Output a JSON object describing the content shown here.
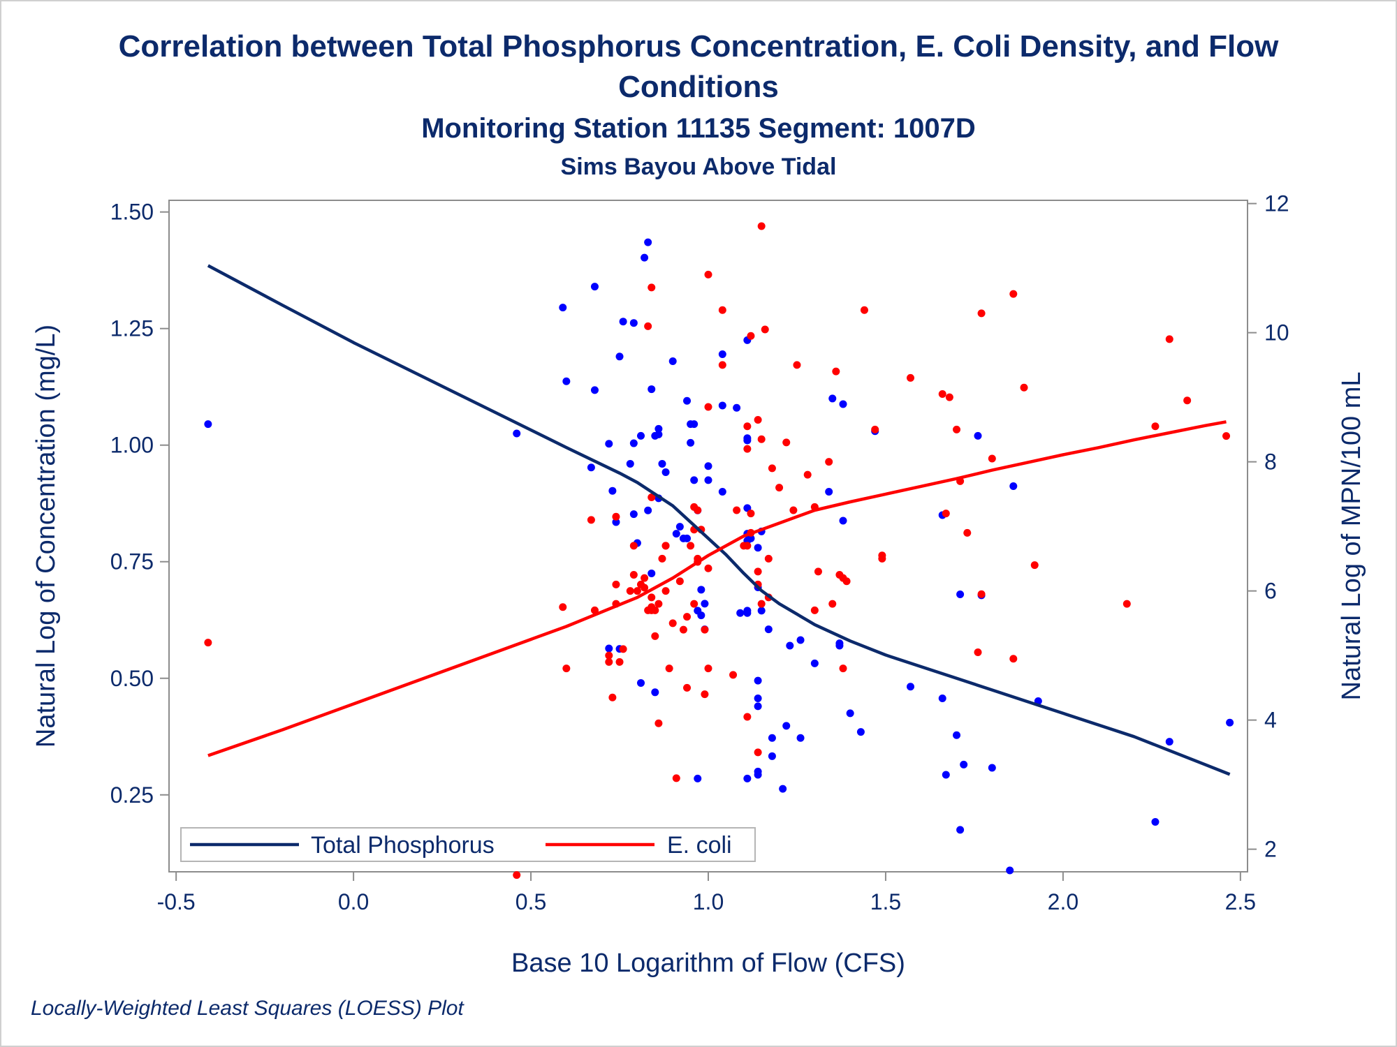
{
  "title": "Correlation between Total Phosphorus Concentration, E. Coli Density, and Flow Conditions",
  "subtitle1": "Monitoring Station 11135 Segment: 1007D",
  "subtitle2": "Sims Bayou Above Tidal",
  "footnote": "Locally-Weighted Least Squares (LOESS) Plot",
  "colors": {
    "text": "#0c2a6b",
    "phosphorus": "#0c2a6b",
    "phosphorus_points": "#0000ff",
    "ecoli": "#ff0000"
  },
  "chart_data": {
    "type": "scatter",
    "xlabel": "Base 10 Logarithm of Flow (CFS)",
    "ylabel_left": "Natural Log of Concentration (mg/L)",
    "ylabel_right": "Natural Log of MPN/100 mL",
    "xlim": [
      -0.52,
      2.52
    ],
    "ylim_left": [
      0.085,
      1.525
    ],
    "ylim_right": [
      1.65,
      12.05
    ],
    "x_ticks": [
      "-0.5",
      "0.0",
      "0.5",
      "1.0",
      "1.5",
      "2.0",
      "2.5"
    ],
    "y_left_ticks": [
      "0.25",
      "0.50",
      "0.75",
      "1.00",
      "1.25",
      "1.50"
    ],
    "y_right_ticks": [
      "2",
      "4",
      "6",
      "8",
      "10",
      "12"
    ],
    "legend": {
      "placement": "bottom-left",
      "items": [
        "Total Phosphorus",
        "E. coli"
      ]
    },
    "series": [
      {
        "name": "Total Phosphorus",
        "axis": "left",
        "points": [
          [
            -0.41,
            1.045
          ],
          [
            0.46,
            1.025
          ],
          [
            0.59,
            1.295
          ],
          [
            0.6,
            1.137
          ],
          [
            0.67,
            0.952
          ],
          [
            0.68,
            1.34
          ],
          [
            0.68,
            1.118
          ],
          [
            0.72,
            1.003
          ],
          [
            0.72,
            0.564
          ],
          [
            0.73,
            0.902
          ],
          [
            0.74,
            0.835
          ],
          [
            0.75,
            0.563
          ],
          [
            0.75,
            1.19
          ],
          [
            0.76,
            1.265
          ],
          [
            0.78,
            0.96
          ],
          [
            0.79,
            1.004
          ],
          [
            0.79,
            1.262
          ],
          [
            0.79,
            0.852
          ],
          [
            0.8,
            0.79
          ],
          [
            0.81,
            1.02
          ],
          [
            0.81,
            0.49
          ],
          [
            0.82,
            1.402
          ],
          [
            0.83,
            1.435
          ],
          [
            0.83,
            0.86
          ],
          [
            0.84,
            0.725
          ],
          [
            0.84,
            1.12
          ],
          [
            0.85,
            1.02
          ],
          [
            0.85,
            0.47
          ],
          [
            0.86,
            0.886
          ],
          [
            0.86,
            1.035
          ],
          [
            0.86,
            1.023
          ],
          [
            0.87,
            0.96
          ],
          [
            0.88,
            0.942
          ],
          [
            0.9,
            1.18
          ],
          [
            0.91,
            0.81
          ],
          [
            0.92,
            0.825
          ],
          [
            0.93,
            0.8
          ],
          [
            0.94,
            0.8
          ],
          [
            0.94,
            1.095
          ],
          [
            0.95,
            1.005
          ],
          [
            0.95,
            1.045
          ],
          [
            0.96,
            1.045
          ],
          [
            0.96,
            0.925
          ],
          [
            0.97,
            0.86
          ],
          [
            0.97,
            0.645
          ],
          [
            0.97,
            0.285
          ],
          [
            0.98,
            0.69
          ],
          [
            0.98,
            0.635
          ],
          [
            0.99,
            0.66
          ],
          [
            0.99,
            0.605
          ],
          [
            1.0,
            0.925
          ],
          [
            1.0,
            0.955
          ],
          [
            1.04,
            1.195
          ],
          [
            1.04,
            1.085
          ],
          [
            1.04,
            0.9
          ],
          [
            1.08,
            1.08
          ],
          [
            1.09,
            0.64
          ],
          [
            1.11,
            1.225
          ],
          [
            1.11,
            0.865
          ],
          [
            1.11,
            1.015
          ],
          [
            1.11,
            1.01
          ],
          [
            1.11,
            0.81
          ],
          [
            1.11,
            0.795
          ],
          [
            1.11,
            0.645
          ],
          [
            1.11,
            0.64
          ],
          [
            1.11,
            0.285
          ],
          [
            1.12,
            0.8
          ],
          [
            1.14,
            0.3
          ],
          [
            1.14,
            0.293
          ],
          [
            1.14,
            0.44
          ],
          [
            1.14,
            0.495
          ],
          [
            1.14,
            0.695
          ],
          [
            1.14,
            0.457
          ],
          [
            1.14,
            0.78
          ],
          [
            1.15,
            0.815
          ],
          [
            1.15,
            0.645
          ],
          [
            1.17,
            0.605
          ],
          [
            1.18,
            0.372
          ],
          [
            1.18,
            0.333
          ],
          [
            1.21,
            0.263
          ],
          [
            1.22,
            0.398
          ],
          [
            1.23,
            0.57
          ],
          [
            1.26,
            0.372
          ],
          [
            1.26,
            0.582
          ],
          [
            1.3,
            0.532
          ],
          [
            1.34,
            0.9
          ],
          [
            1.35,
            1.1
          ],
          [
            1.37,
            0.57
          ],
          [
            1.37,
            0.575
          ],
          [
            1.38,
            1.088
          ],
          [
            1.38,
            0.838
          ],
          [
            1.4,
            0.425
          ],
          [
            1.43,
            0.385
          ],
          [
            1.47,
            1.03
          ],
          [
            1.57,
            0.482
          ],
          [
            1.66,
            0.457
          ],
          [
            1.66,
            0.85
          ],
          [
            1.67,
            0.293
          ],
          [
            1.7,
            0.378
          ],
          [
            1.71,
            0.68
          ],
          [
            1.71,
            0.175
          ],
          [
            1.72,
            0.315
          ],
          [
            1.76,
            1.02
          ],
          [
            1.77,
            0.678
          ],
          [
            1.8,
            0.308
          ],
          [
            1.85,
            0.088
          ],
          [
            1.86,
            0.912
          ],
          [
            1.93,
            0.451
          ],
          [
            2.26,
            0.192
          ],
          [
            2.3,
            0.364
          ],
          [
            2.47,
            0.405
          ]
        ],
        "loess": [
          [
            -0.41,
            1.385
          ],
          [
            -0.2,
            1.3
          ],
          [
            0.0,
            1.22
          ],
          [
            0.2,
            1.145
          ],
          [
            0.4,
            1.07
          ],
          [
            0.6,
            0.995
          ],
          [
            0.75,
            0.94
          ],
          [
            0.8,
            0.92
          ],
          [
            0.9,
            0.87
          ],
          [
            1.0,
            0.8
          ],
          [
            1.05,
            0.765
          ],
          [
            1.1,
            0.725
          ],
          [
            1.15,
            0.688
          ],
          [
            1.2,
            0.66
          ],
          [
            1.3,
            0.615
          ],
          [
            1.4,
            0.58
          ],
          [
            1.5,
            0.55
          ],
          [
            1.6,
            0.525
          ],
          [
            1.7,
            0.5
          ],
          [
            1.8,
            0.475
          ],
          [
            1.9,
            0.45
          ],
          [
            2.0,
            0.425
          ],
          [
            2.1,
            0.4
          ],
          [
            2.2,
            0.375
          ],
          [
            2.3,
            0.345
          ],
          [
            2.4,
            0.315
          ],
          [
            2.47,
            0.294
          ]
        ]
      },
      {
        "name": "E. coli",
        "axis": "right",
        "points": [
          [
            -0.41,
            5.2
          ],
          [
            0.46,
            1.6
          ],
          [
            0.59,
            5.75
          ],
          [
            0.6,
            4.8
          ],
          [
            0.67,
            7.1
          ],
          [
            0.68,
            5.7
          ],
          [
            0.72,
            4.9
          ],
          [
            0.72,
            5.0
          ],
          [
            0.73,
            4.35
          ],
          [
            0.74,
            5.8
          ],
          [
            0.74,
            6.1
          ],
          [
            0.74,
            7.15
          ],
          [
            0.75,
            4.9
          ],
          [
            0.76,
            5.1
          ],
          [
            0.78,
            6.0
          ],
          [
            0.79,
            6.7
          ],
          [
            0.79,
            6.25
          ],
          [
            0.8,
            6.0
          ],
          [
            0.81,
            6.1
          ],
          [
            0.82,
            6.05
          ],
          [
            0.82,
            6.2
          ],
          [
            0.83,
            5.7
          ],
          [
            0.83,
            10.1
          ],
          [
            0.84,
            5.7
          ],
          [
            0.84,
            5.9
          ],
          [
            0.84,
            7.45
          ],
          [
            0.84,
            10.7
          ],
          [
            0.84,
            5.75
          ],
          [
            0.85,
            5.7
          ],
          [
            0.85,
            5.3
          ],
          [
            0.86,
            3.95
          ],
          [
            0.86,
            5.8
          ],
          [
            0.87,
            6.5
          ],
          [
            0.88,
            6.7
          ],
          [
            0.88,
            6.7
          ],
          [
            0.88,
            6.0
          ],
          [
            0.89,
            4.8
          ],
          [
            0.9,
            5.5
          ],
          [
            0.91,
            3.1
          ],
          [
            0.92,
            6.15
          ],
          [
            0.93,
            5.4
          ],
          [
            0.94,
            5.6
          ],
          [
            0.94,
            4.5
          ],
          [
            0.95,
            6.7
          ],
          [
            0.96,
            5.8
          ],
          [
            0.96,
            7.3
          ],
          [
            0.96,
            6.95
          ],
          [
            0.97,
            6.45
          ],
          [
            0.97,
            6.5
          ],
          [
            0.97,
            7.25
          ],
          [
            0.98,
            6.95
          ],
          [
            0.99,
            4.4
          ],
          [
            0.99,
            5.4
          ],
          [
            1.0,
            4.8
          ],
          [
            1.0,
            8.85
          ],
          [
            1.0,
            6.35
          ],
          [
            1.0,
            10.9
          ],
          [
            1.04,
            9.5
          ],
          [
            1.04,
            10.35
          ],
          [
            1.07,
            4.7
          ],
          [
            1.08,
            7.25
          ],
          [
            1.1,
            6.7
          ],
          [
            1.11,
            4.05
          ],
          [
            1.11,
            6.7
          ],
          [
            1.11,
            8.2
          ],
          [
            1.11,
            8.55
          ],
          [
            1.12,
            9.95
          ],
          [
            1.12,
            6.9
          ],
          [
            1.12,
            7.2
          ],
          [
            1.14,
            6.1
          ],
          [
            1.14,
            3.5
          ],
          [
            1.14,
            6.3
          ],
          [
            1.14,
            8.65
          ],
          [
            1.15,
            8.35
          ],
          [
            1.15,
            11.65
          ],
          [
            1.15,
            5.8
          ],
          [
            1.16,
            10.05
          ],
          [
            1.17,
            6.5
          ],
          [
            1.17,
            5.9
          ],
          [
            1.18,
            7.9
          ],
          [
            1.2,
            7.6
          ],
          [
            1.22,
            8.3
          ],
          [
            1.24,
            7.25
          ],
          [
            1.25,
            9.5
          ],
          [
            1.28,
            7.8
          ],
          [
            1.3,
            7.3
          ],
          [
            1.3,
            5.7
          ],
          [
            1.31,
            6.3
          ],
          [
            1.34,
            8.0
          ],
          [
            1.35,
            5.8
          ],
          [
            1.36,
            9.4
          ],
          [
            1.37,
            6.25
          ],
          [
            1.38,
            4.8
          ],
          [
            1.38,
            6.2
          ],
          [
            1.39,
            6.15
          ],
          [
            1.44,
            10.35
          ],
          [
            1.47,
            8.5
          ],
          [
            1.49,
            6.5
          ],
          [
            1.49,
            6.55
          ],
          [
            1.57,
            9.3
          ],
          [
            1.66,
            9.05
          ],
          [
            1.67,
            7.2
          ],
          [
            1.68,
            9.0
          ],
          [
            1.7,
            8.5
          ],
          [
            1.71,
            7.7
          ],
          [
            1.73,
            6.9
          ],
          [
            1.76,
            5.05
          ],
          [
            1.77,
            5.95
          ],
          [
            1.77,
            10.3
          ],
          [
            1.8,
            8.05
          ],
          [
            1.86,
            10.6
          ],
          [
            1.86,
            4.95
          ],
          [
            1.89,
            9.15
          ],
          [
            1.92,
            6.4
          ],
          [
            2.18,
            5.8
          ],
          [
            2.26,
            8.55
          ],
          [
            2.3,
            9.9
          ],
          [
            2.35,
            8.95
          ],
          [
            2.46,
            8.4
          ]
        ],
        "loess": [
          [
            -0.41,
            3.45
          ],
          [
            -0.2,
            3.85
          ],
          [
            0.0,
            4.25
          ],
          [
            0.2,
            4.65
          ],
          [
            0.4,
            5.05
          ],
          [
            0.6,
            5.45
          ],
          [
            0.8,
            5.9
          ],
          [
            0.9,
            6.2
          ],
          [
            1.0,
            6.55
          ],
          [
            1.1,
            6.85
          ],
          [
            1.2,
            7.05
          ],
          [
            1.3,
            7.25
          ],
          [
            1.4,
            7.38
          ],
          [
            1.5,
            7.5
          ],
          [
            1.6,
            7.62
          ],
          [
            1.7,
            7.74
          ],
          [
            1.8,
            7.87
          ],
          [
            1.9,
            7.99
          ],
          [
            2.0,
            8.11
          ],
          [
            2.1,
            8.22
          ],
          [
            2.2,
            8.34
          ],
          [
            2.3,
            8.45
          ],
          [
            2.4,
            8.56
          ],
          [
            2.46,
            8.62
          ]
        ]
      }
    ]
  }
}
